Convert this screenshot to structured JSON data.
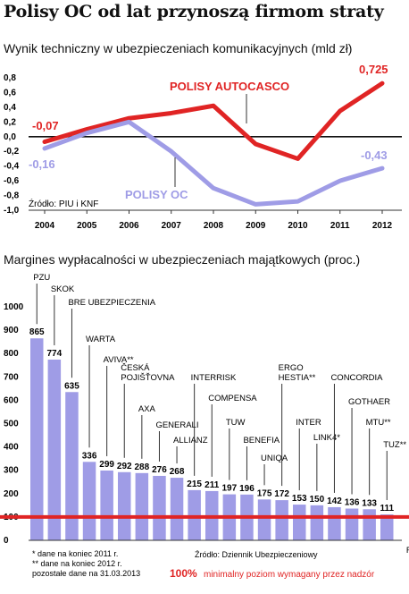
{
  "headline": "Polisy OC od lat przynoszą firmom straty",
  "chart_data": [
    {
      "type": "line",
      "title": "Wynik techniczny w ubezpieczeniach komunikacyjnych (mld zł)",
      "x": [
        "2004",
        "2005",
        "2006",
        "2007",
        "2008",
        "2009",
        "2010",
        "2011",
        "2012"
      ],
      "ylim": [
        -1.0,
        0.8
      ],
      "yticks": [
        "0,8",
        "0,6",
        "0,4",
        "0,2",
        "0,0",
        "-0,2",
        "-0,4",
        "-0,6",
        "-0,8",
        "-1,0"
      ],
      "series": [
        {
          "name": "POLISY AUTOCASCO",
          "color": "#e02424",
          "values": [
            -0.07,
            0.1,
            0.25,
            0.32,
            0.42,
            -0.1,
            -0.3,
            0.35,
            0.725
          ]
        },
        {
          "name": "POLISY OC",
          "color": "#9f9ce6",
          "values": [
            -0.16,
            0.05,
            0.2,
            -0.2,
            -0.7,
            -0.92,
            -0.88,
            -0.6,
            -0.43
          ]
        }
      ],
      "labels": {
        "autocasco_start": "-0,07",
        "autocasco_end": "0,725",
        "oc_start": "-0,16",
        "oc_end": "-0,43"
      },
      "source": "Źródło: PIU i KNF"
    },
    {
      "type": "bar",
      "title": "Margines wypłacalności w ubezpieczeniach majątkowych (proc.)",
      "ylim": [
        0,
        1000
      ],
      "yticks": [
        "1000",
        "900",
        "800",
        "700",
        "600",
        "500",
        "400",
        "300",
        "200",
        "100",
        "0"
      ],
      "categories": [
        "PZU",
        "SKOK",
        "BRE UBEZPIECZENIA",
        "WARTA",
        "AVIVA**",
        "ČESKÁ POJIŠŤOVNA",
        "AXA",
        "GENERALI",
        "ALLIANZ",
        "INTERRISK",
        "COMPENSA",
        "TUW",
        "BENEFIA",
        "UNIQA",
        "ERGO HESTIA**",
        "INTER",
        "LINK4*",
        "CONCORDIA",
        "GOTHAER",
        "MTU**",
        "TUZ**",
        "RM"
      ],
      "values": [
        865,
        774,
        635,
        336,
        299,
        292,
        288,
        276,
        268,
        215,
        211,
        197,
        196,
        175,
        172,
        153,
        150,
        142,
        136,
        133,
        111,
        null
      ],
      "value_labels": [
        "865",
        "774",
        "635",
        "336",
        "299",
        "292",
        "288",
        "276",
        "268",
        "215",
        "211",
        "197",
        "196",
        "175",
        "172",
        "153",
        "150",
        "142",
        "136",
        "133",
        "111",
        ""
      ],
      "reference_line": {
        "value": 100,
        "color": "#e02424"
      },
      "bar_color": "#9f9ce6",
      "notes": [
        "* dane na koniec 2011 r.",
        "** dane na koniec 2012 r.",
        "pozostałe dane na 31.03.2013"
      ],
      "source": "Źródło: Dziennik Ubezpieczeniowy",
      "reference_caption_bold": "100%",
      "reference_caption": "minimalny poziom wymagany przez nadzór"
    }
  ]
}
